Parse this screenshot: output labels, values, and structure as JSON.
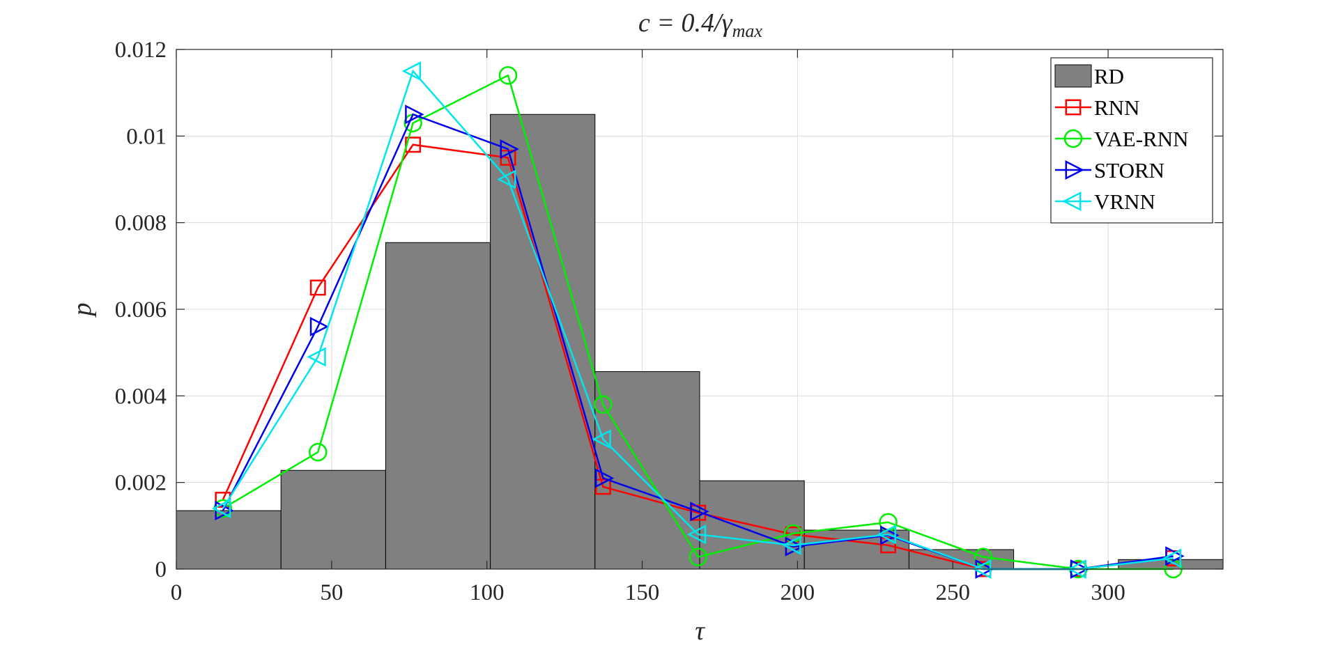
{
  "chart_data": {
    "type": "bar",
    "title_parts": {
      "lhs": "c = 0.4/",
      "gamma": "γ",
      "subscript": "max"
    },
    "xlabel": "τ",
    "ylabel": "p",
    "xlim": [
      0,
      337
    ],
    "ylim": [
      0,
      0.012
    ],
    "xticks": [
      0,
      50,
      100,
      150,
      200,
      250,
      300
    ],
    "yticks": [
      0,
      0.002,
      0.004,
      0.006,
      0.008,
      0.01,
      0.012
    ],
    "xtick_labels": [
      "0",
      "50",
      "100",
      "150",
      "200",
      "250",
      "300"
    ],
    "ytick_labels": [
      "0",
      "0.002",
      "0.004",
      "0.006",
      "0.008",
      "0.01",
      "0.012"
    ],
    "grid": true,
    "legend_position": "top-right",
    "histogram": {
      "name": "RD",
      "color": "#808080",
      "edges": [
        0,
        33.7,
        67.4,
        101.1,
        134.8,
        168.5,
        202.2,
        235.9,
        269.6,
        303.3,
        337
      ],
      "values": [
        0.00135,
        0.00228,
        0.00754,
        0.0105,
        0.00456,
        0.00204,
        0.0009,
        0.00045,
        0.0,
        0.00022
      ]
    },
    "series": [
      {
        "name": "RNN",
        "color": "#ff0000",
        "marker": "square",
        "x": [
          15,
          45.6,
          76.2,
          106.8,
          137.4,
          168,
          198.6,
          229.2,
          259.8,
          290.4,
          321
        ],
        "y": [
          0.0016,
          0.0065,
          0.0098,
          0.0095,
          0.0019,
          0.0013,
          0.0008,
          0.00055,
          0.0,
          0.0,
          0.00025
        ]
      },
      {
        "name": "VAE-RNN",
        "color": "#00ee00",
        "marker": "circle",
        "x": [
          15,
          45.6,
          76.2,
          106.8,
          137.4,
          168,
          198.6,
          229.2,
          259.8,
          290.4,
          321
        ],
        "y": [
          0.0014,
          0.0027,
          0.0103,
          0.0114,
          0.0038,
          0.00028,
          0.00082,
          0.00108,
          0.00028,
          0.0,
          0.0
        ]
      },
      {
        "name": "STORN",
        "color": "#0000ee",
        "marker": "triangle-right",
        "x": [
          15,
          45.6,
          76.2,
          106.8,
          137.4,
          168,
          198.6,
          229.2,
          259.8,
          290.4,
          321
        ],
        "y": [
          0.00135,
          0.0056,
          0.0105,
          0.0097,
          0.0021,
          0.00133,
          0.00052,
          0.00078,
          0.0,
          0.0,
          0.0003
        ]
      },
      {
        "name": "VRNN",
        "color": "#00e5ee",
        "marker": "triangle-left",
        "x": [
          15,
          45.6,
          76.2,
          106.8,
          137.4,
          168,
          198.6,
          229.2,
          259.8,
          290.4,
          321
        ],
        "y": [
          0.0014,
          0.0049,
          0.0115,
          0.009,
          0.003,
          0.0008,
          0.00055,
          0.0008,
          0.0,
          0.0,
          0.00025
        ]
      }
    ]
  }
}
